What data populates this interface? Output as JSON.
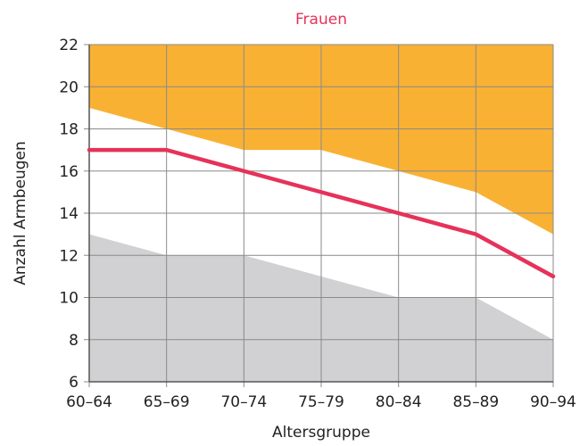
{
  "chart_data": {
    "type": "area",
    "title": "Frauen",
    "xlabel": "Altersgruppe",
    "ylabel": "Anzahl Armbeugen",
    "categories": [
      "60–64",
      "65–69",
      "70–74",
      "75–79",
      "80–84",
      "85–89",
      "90–94"
    ],
    "ylim": [
      6,
      22
    ],
    "yticks": [
      6,
      8,
      10,
      12,
      14,
      16,
      18,
      20,
      22
    ],
    "grid": true,
    "series": [
      {
        "role": "upper-band",
        "values": [
          19,
          18,
          17,
          17,
          16,
          15,
          13
        ]
      },
      {
        "role": "lower-band",
        "values": [
          13,
          12,
          12,
          11,
          10,
          10,
          8
        ]
      },
      {
        "role": "line",
        "values": [
          17,
          17,
          16,
          15,
          14,
          13,
          11
        ]
      }
    ]
  },
  "colors": {
    "title": "#e6325a",
    "upper_band": "#f9b134",
    "lower_band": "#d1d1d3",
    "line": "#e6325a",
    "grid": "#8a8a8a",
    "axis": "#555555"
  }
}
